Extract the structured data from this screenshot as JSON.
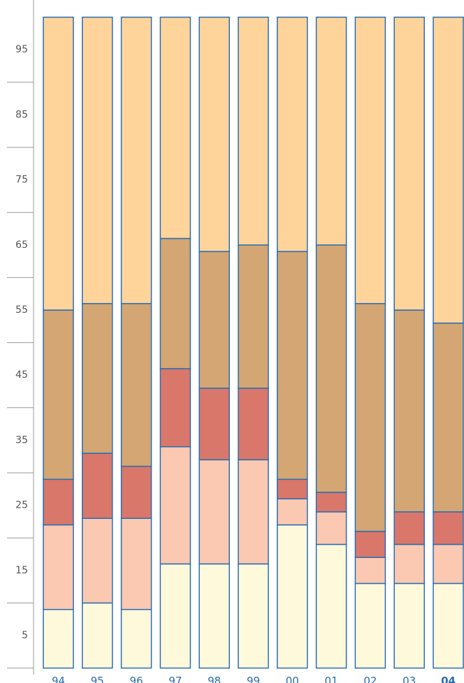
{
  "chart_data": {
    "type": "stacked_bar",
    "categories": [
      "94",
      "95",
      "96",
      "97",
      "98",
      "99",
      "00",
      "01",
      "02",
      "03",
      "04"
    ],
    "highlight_category": 10,
    "series": [
      {
        "color": "#fff9dc",
        "values": [
          9,
          10,
          9,
          16,
          16,
          16,
          22,
          19,
          13,
          13,
          13
        ]
      },
      {
        "color": "#fbc8b1",
        "values": [
          13,
          13,
          14,
          18,
          16,
          16,
          4,
          5,
          4,
          6,
          6
        ]
      },
      {
        "color": "#d9776b",
        "values": [
          7,
          10,
          8,
          12,
          11,
          11,
          3,
          3,
          4,
          5,
          5
        ]
      },
      {
        "color": "#d4a673",
        "values": [
          26,
          23,
          25,
          20,
          21,
          22,
          35,
          38,
          35,
          31,
          29
        ]
      },
      {
        "color": "#fed49b",
        "values": [
          45,
          44,
          44,
          34,
          36,
          35,
          36,
          35,
          44,
          45,
          47
        ]
      }
    ],
    "bar_edge_color": "#2a6db0",
    "ylim": [
      0,
      100
    ],
    "yticks": [
      5,
      15,
      25,
      35,
      45,
      55,
      65,
      75,
      85,
      95
    ],
    "yminor_ticks": [
      0,
      10,
      20,
      30,
      40,
      50,
      60,
      70,
      80,
      90
    ]
  }
}
